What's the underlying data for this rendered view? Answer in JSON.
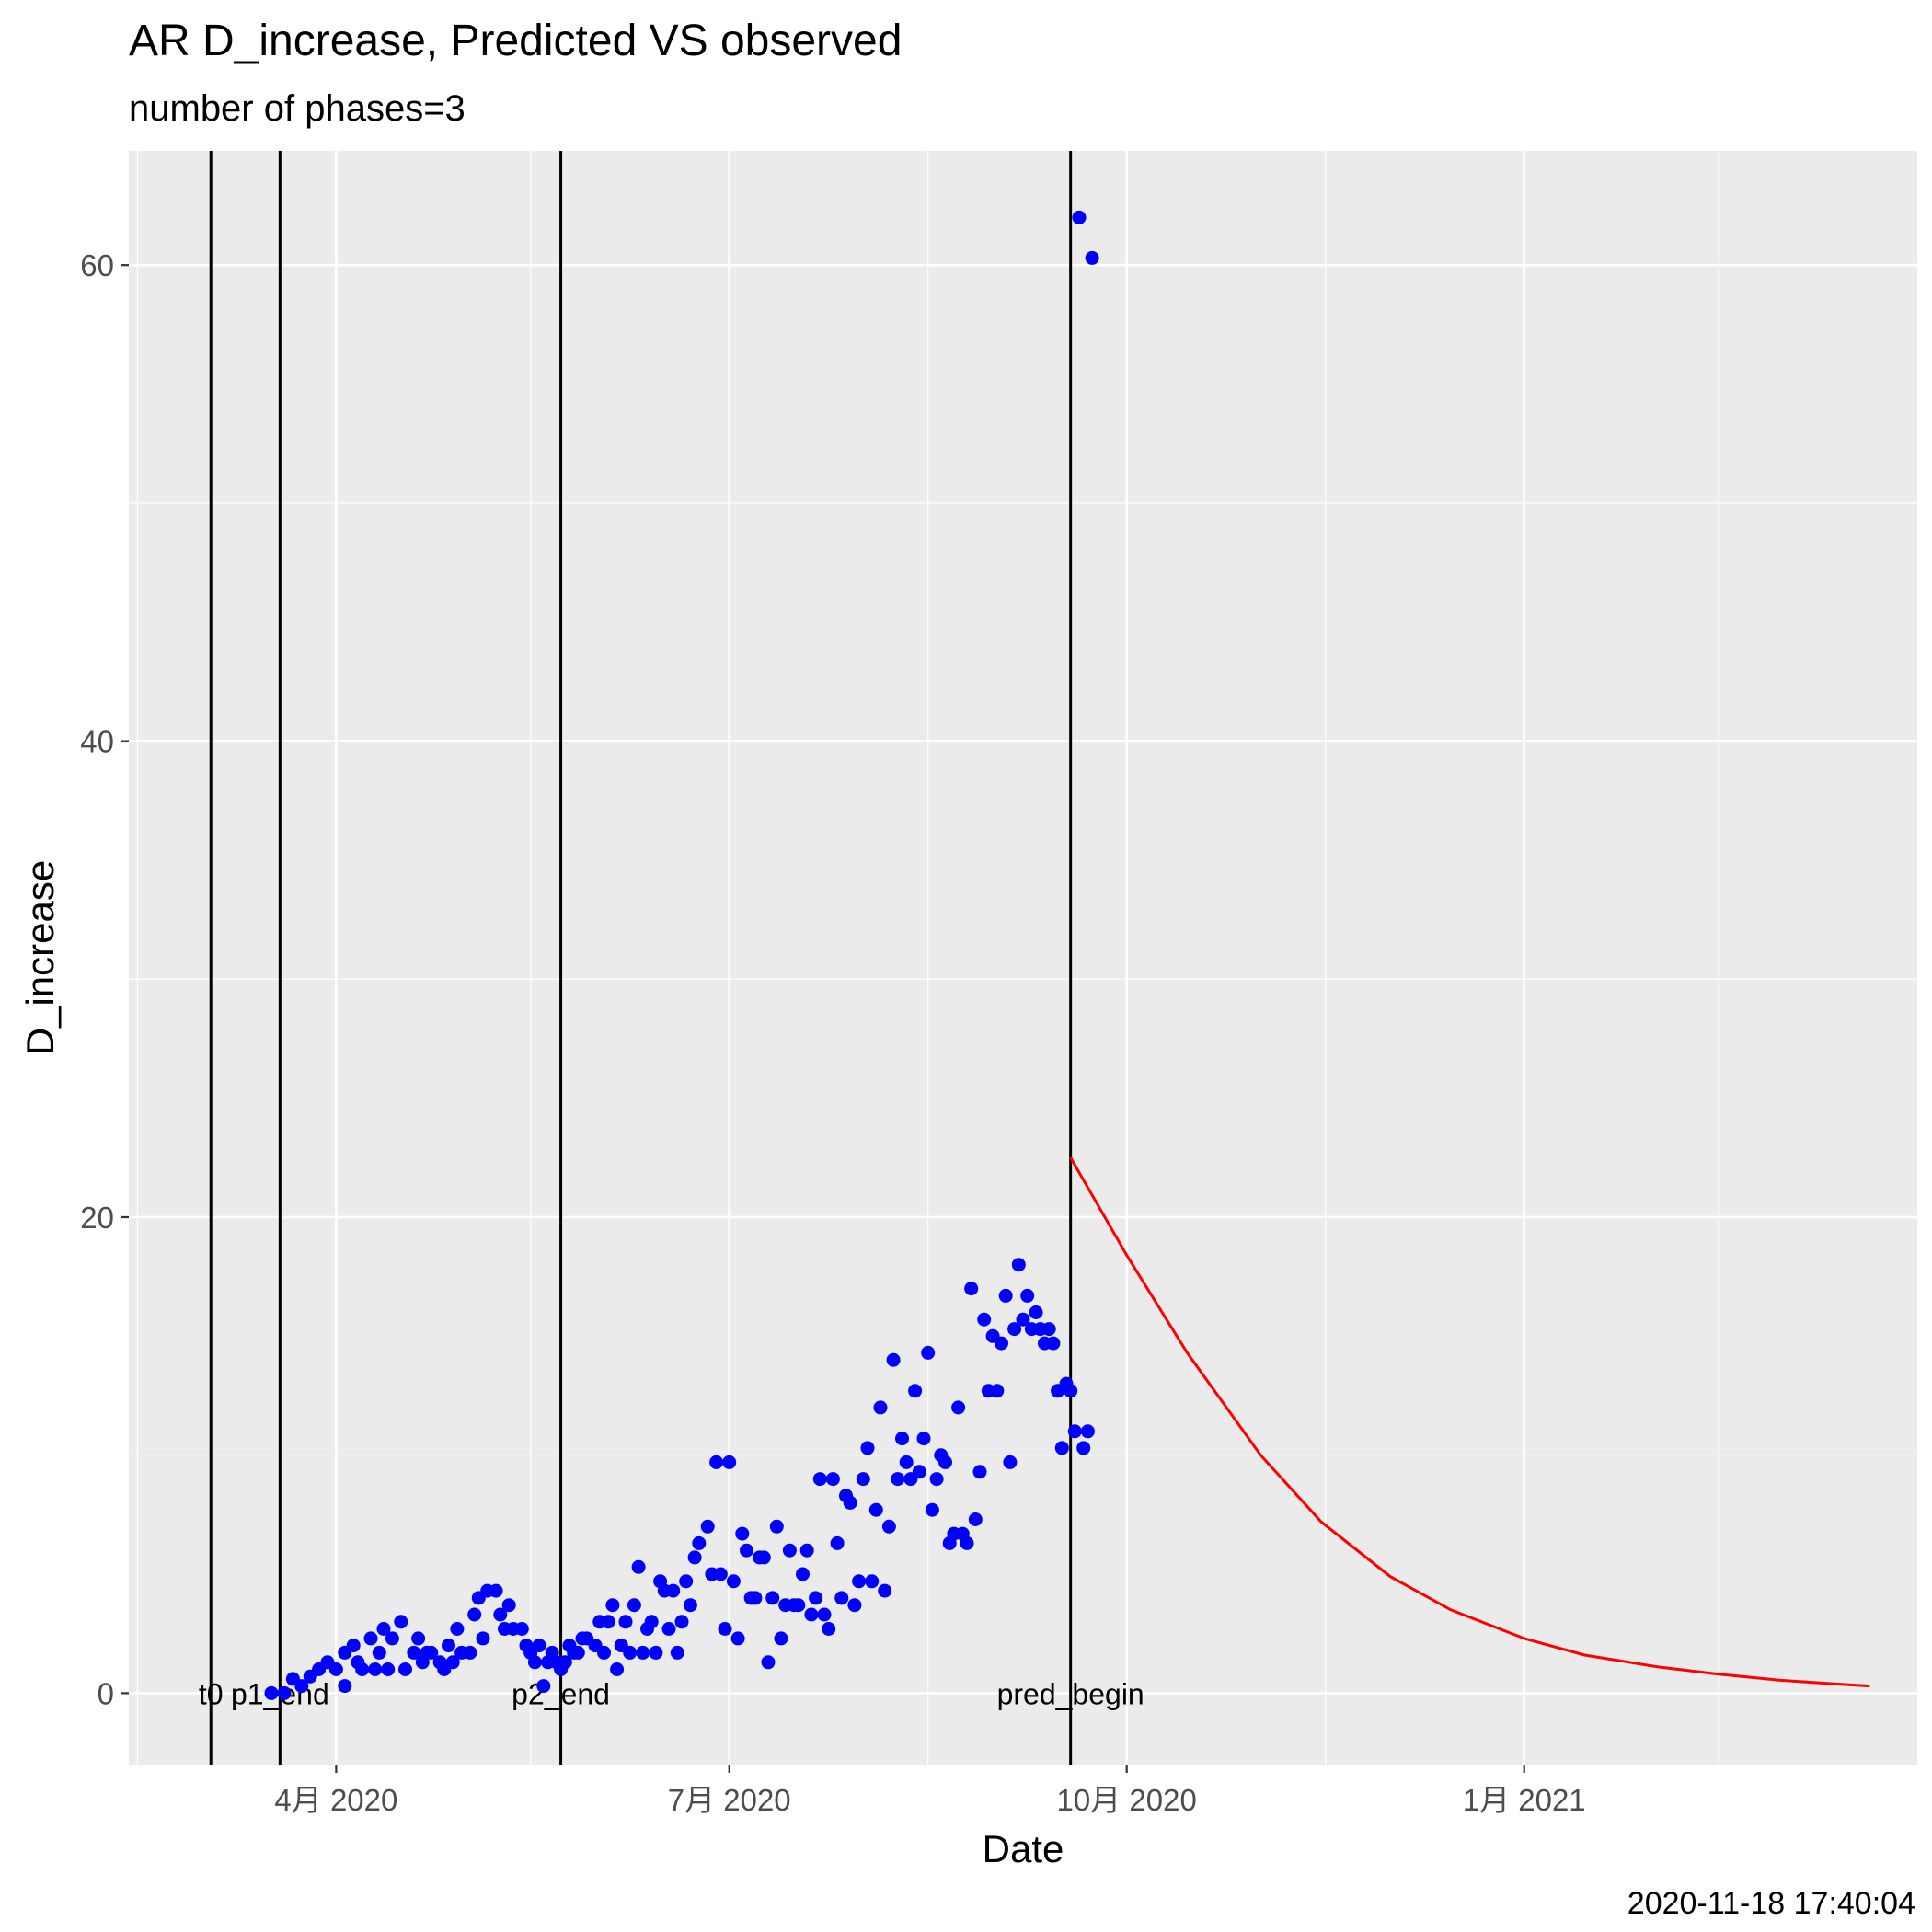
{
  "chart_data": {
    "type": "scatter",
    "title": "AR D_increase, Predicted VS observed",
    "subtitle": "number of phases=3",
    "xlabel": "Date",
    "ylabel": "D_increase",
    "caption": "2020-11-18 17:40:04",
    "xlim": [
      "2020-02-13",
      "2021-04-02"
    ],
    "ylim": [
      -3.0,
      64.8
    ],
    "x_ticks": [
      {
        "date": "2020-04-01",
        "label": "4月 2020"
      },
      {
        "date": "2020-07-01",
        "label": "7月 2020"
      },
      {
        "date": "2020-10-01",
        "label": "10月 2020"
      },
      {
        "date": "2021-01-01",
        "label": "1月 2021"
      }
    ],
    "y_ticks": [
      0,
      20,
      40,
      60
    ],
    "grid": true,
    "background_color": "#EBEBEB",
    "phase_markers": [
      {
        "date": "2020-03-03",
        "label": "t0"
      },
      {
        "date": "2020-03-19",
        "label": "p1_end"
      },
      {
        "date": "2020-05-23",
        "label": "p2_end"
      },
      {
        "date": "2020-09-18",
        "label": "pred_begin"
      }
    ],
    "series": [
      {
        "kind": "observed",
        "color": "#0000FF",
        "points": [
          [
            "2020-03-17",
            0.0
          ],
          [
            "2020-03-20",
            0.0
          ],
          [
            "2020-03-22",
            0.6
          ],
          [
            "2020-03-24",
            0.3
          ],
          [
            "2020-03-26",
            0.7
          ],
          [
            "2020-03-28",
            1.0
          ],
          [
            "2020-03-30",
            1.3
          ],
          [
            "2020-04-01",
            1.0
          ],
          [
            "2020-04-03",
            1.7
          ],
          [
            "2020-04-03",
            0.3
          ],
          [
            "2020-04-05",
            2.0
          ],
          [
            "2020-04-06",
            1.3
          ],
          [
            "2020-04-07",
            1.0
          ],
          [
            "2020-04-09",
            2.3
          ],
          [
            "2020-04-10",
            1.0
          ],
          [
            "2020-04-11",
            1.7
          ],
          [
            "2020-04-12",
            2.7
          ],
          [
            "2020-04-13",
            1.0
          ],
          [
            "2020-04-14",
            2.3
          ],
          [
            "2020-04-16",
            3.0
          ],
          [
            "2020-04-17",
            1.0
          ],
          [
            "2020-04-19",
            1.7
          ],
          [
            "2020-04-20",
            2.3
          ],
          [
            "2020-04-21",
            1.3
          ],
          [
            "2020-04-22",
            1.7
          ],
          [
            "2020-04-23",
            1.7
          ],
          [
            "2020-04-25",
            1.3
          ],
          [
            "2020-04-26",
            1.0
          ],
          [
            "2020-04-27",
            2.0
          ],
          [
            "2020-04-28",
            1.3
          ],
          [
            "2020-04-29",
            2.7
          ],
          [
            "2020-04-30",
            1.7
          ],
          [
            "2020-05-02",
            1.7
          ],
          [
            "2020-05-03",
            3.3
          ],
          [
            "2020-05-04",
            4.0
          ],
          [
            "2020-05-05",
            2.3
          ],
          [
            "2020-05-06",
            4.3
          ],
          [
            "2020-05-08",
            4.3
          ],
          [
            "2020-05-09",
            3.3
          ],
          [
            "2020-05-10",
            2.7
          ],
          [
            "2020-05-11",
            3.7
          ],
          [
            "2020-05-12",
            2.7
          ],
          [
            "2020-05-14",
            2.7
          ],
          [
            "2020-05-15",
            2.0
          ],
          [
            "2020-05-16",
            1.7
          ],
          [
            "2020-05-17",
            1.3
          ],
          [
            "2020-05-18",
            2.0
          ],
          [
            "2020-05-19",
            0.3
          ],
          [
            "2020-05-20",
            1.3
          ],
          [
            "2020-05-21",
            1.7
          ],
          [
            "2020-05-22",
            1.3
          ],
          [
            "2020-05-23",
            1.0
          ],
          [
            "2020-05-24",
            1.3
          ],
          [
            "2020-05-25",
            2.0
          ],
          [
            "2020-05-26",
            1.7
          ],
          [
            "2020-05-27",
            1.7
          ],
          [
            "2020-05-28",
            2.3
          ],
          [
            "2020-05-29",
            2.3
          ],
          [
            "2020-05-31",
            2.0
          ],
          [
            "2020-06-01",
            3.0
          ],
          [
            "2020-06-02",
            1.7
          ],
          [
            "2020-06-03",
            3.0
          ],
          [
            "2020-06-04",
            3.7
          ],
          [
            "2020-06-05",
            1.0
          ],
          [
            "2020-06-06",
            2.0
          ],
          [
            "2020-06-07",
            3.0
          ],
          [
            "2020-06-08",
            1.7
          ],
          [
            "2020-06-09",
            3.7
          ],
          [
            "2020-06-10",
            5.3
          ],
          [
            "2020-06-11",
            1.7
          ],
          [
            "2020-06-12",
            2.7
          ],
          [
            "2020-06-13",
            3.0
          ],
          [
            "2020-06-14",
            1.7
          ],
          [
            "2020-06-15",
            4.7
          ],
          [
            "2020-06-16",
            4.3
          ],
          [
            "2020-06-17",
            2.7
          ],
          [
            "2020-06-18",
            4.3
          ],
          [
            "2020-06-19",
            1.7
          ],
          [
            "2020-06-20",
            3.0
          ],
          [
            "2020-06-21",
            4.7
          ],
          [
            "2020-06-22",
            3.7
          ],
          [
            "2020-06-23",
            5.7
          ],
          [
            "2020-06-24",
            6.3
          ],
          [
            "2020-06-26",
            7.0
          ],
          [
            "2020-06-27",
            5.0
          ],
          [
            "2020-06-28",
            9.7
          ],
          [
            "2020-06-29",
            5.0
          ],
          [
            "2020-06-30",
            2.7
          ],
          [
            "2020-07-01",
            9.7
          ],
          [
            "2020-07-02",
            4.7
          ],
          [
            "2020-07-03",
            2.3
          ],
          [
            "2020-07-04",
            6.7
          ],
          [
            "2020-07-05",
            6.0
          ],
          [
            "2020-07-06",
            4.0
          ],
          [
            "2020-07-07",
            4.0
          ],
          [
            "2020-07-08",
            5.7
          ],
          [
            "2020-07-09",
            5.7
          ],
          [
            "2020-07-10",
            1.3
          ],
          [
            "2020-07-11",
            4.0
          ],
          [
            "2020-07-12",
            7.0
          ],
          [
            "2020-07-13",
            2.3
          ],
          [
            "2020-07-14",
            3.7
          ],
          [
            "2020-07-15",
            6.0
          ],
          [
            "2020-07-16",
            3.7
          ],
          [
            "2020-07-17",
            3.7
          ],
          [
            "2020-07-18",
            5.0
          ],
          [
            "2020-07-19",
            6.0
          ],
          [
            "2020-07-20",
            3.3
          ],
          [
            "2020-07-21",
            4.0
          ],
          [
            "2020-07-22",
            9.0
          ],
          [
            "2020-07-23",
            3.3
          ],
          [
            "2020-07-24",
            2.7
          ],
          [
            "2020-07-25",
            9.0
          ],
          [
            "2020-07-26",
            6.3
          ],
          [
            "2020-07-27",
            4.0
          ],
          [
            "2020-07-28",
            8.3
          ],
          [
            "2020-07-29",
            8.0
          ],
          [
            "2020-07-30",
            3.7
          ],
          [
            "2020-07-31",
            4.7
          ],
          [
            "2020-08-01",
            9.0
          ],
          [
            "2020-08-02",
            10.3
          ],
          [
            "2020-08-03",
            4.7
          ],
          [
            "2020-08-04",
            7.7
          ],
          [
            "2020-08-05",
            12.0
          ],
          [
            "2020-08-06",
            4.3
          ],
          [
            "2020-08-07",
            7.0
          ],
          [
            "2020-08-08",
            14.0
          ],
          [
            "2020-08-09",
            9.0
          ],
          [
            "2020-08-10",
            10.7
          ],
          [
            "2020-08-11",
            9.7
          ],
          [
            "2020-08-12",
            9.0
          ],
          [
            "2020-08-13",
            12.7
          ],
          [
            "2020-08-14",
            9.3
          ],
          [
            "2020-08-15",
            10.7
          ],
          [
            "2020-08-16",
            14.3
          ],
          [
            "2020-08-17",
            7.7
          ],
          [
            "2020-08-18",
            9.0
          ],
          [
            "2020-08-19",
            10.0
          ],
          [
            "2020-08-20",
            9.7
          ],
          [
            "2020-08-21",
            6.3
          ],
          [
            "2020-08-22",
            6.7
          ],
          [
            "2020-08-23",
            12.0
          ],
          [
            "2020-08-24",
            6.7
          ],
          [
            "2020-08-25",
            6.3
          ],
          [
            "2020-08-26",
            17.0
          ],
          [
            "2020-08-27",
            7.3
          ],
          [
            "2020-08-28",
            9.3
          ],
          [
            "2020-08-29",
            15.7
          ],
          [
            "2020-08-30",
            12.7
          ],
          [
            "2020-08-31",
            15.0
          ],
          [
            "2020-09-01",
            12.7
          ],
          [
            "2020-09-02",
            14.7
          ],
          [
            "2020-09-03",
            16.7
          ],
          [
            "2020-09-04",
            9.7
          ],
          [
            "2020-09-05",
            15.3
          ],
          [
            "2020-09-06",
            18.0
          ],
          [
            "2020-09-07",
            15.7
          ],
          [
            "2020-09-08",
            16.7
          ],
          [
            "2020-09-09",
            15.3
          ],
          [
            "2020-09-10",
            16.0
          ],
          [
            "2020-09-11",
            15.3
          ],
          [
            "2020-09-12",
            14.7
          ],
          [
            "2020-09-13",
            15.3
          ],
          [
            "2020-09-14",
            14.7
          ],
          [
            "2020-09-15",
            12.7
          ],
          [
            "2020-09-16",
            10.3
          ],
          [
            "2020-09-17",
            13.0
          ],
          [
            "2020-09-18",
            12.7
          ],
          [
            "2020-09-19",
            11.0
          ],
          [
            "2020-09-20",
            62.0
          ],
          [
            "2020-09-21",
            10.3
          ],
          [
            "2020-09-22",
            11.0
          ],
          [
            "2020-09-23",
            60.3
          ]
        ]
      },
      {
        "kind": "predicted",
        "color": "#FF0000",
        "points": [
          [
            "2020-09-18",
            22.5
          ],
          [
            "2020-10-01",
            18.4
          ],
          [
            "2020-10-15",
            14.3
          ],
          [
            "2020-11-01",
            10.0
          ],
          [
            "2020-11-15",
            7.2
          ],
          [
            "2020-12-01",
            4.9
          ],
          [
            "2020-12-15",
            3.5
          ],
          [
            "2021-01-01",
            2.3
          ],
          [
            "2021-01-15",
            1.6
          ],
          [
            "2021-02-01",
            1.1
          ],
          [
            "2021-02-15",
            0.8
          ],
          [
            "2021-03-01",
            0.55
          ],
          [
            "2021-03-15",
            0.38
          ],
          [
            "2021-03-22",
            0.3
          ]
        ]
      }
    ]
  }
}
